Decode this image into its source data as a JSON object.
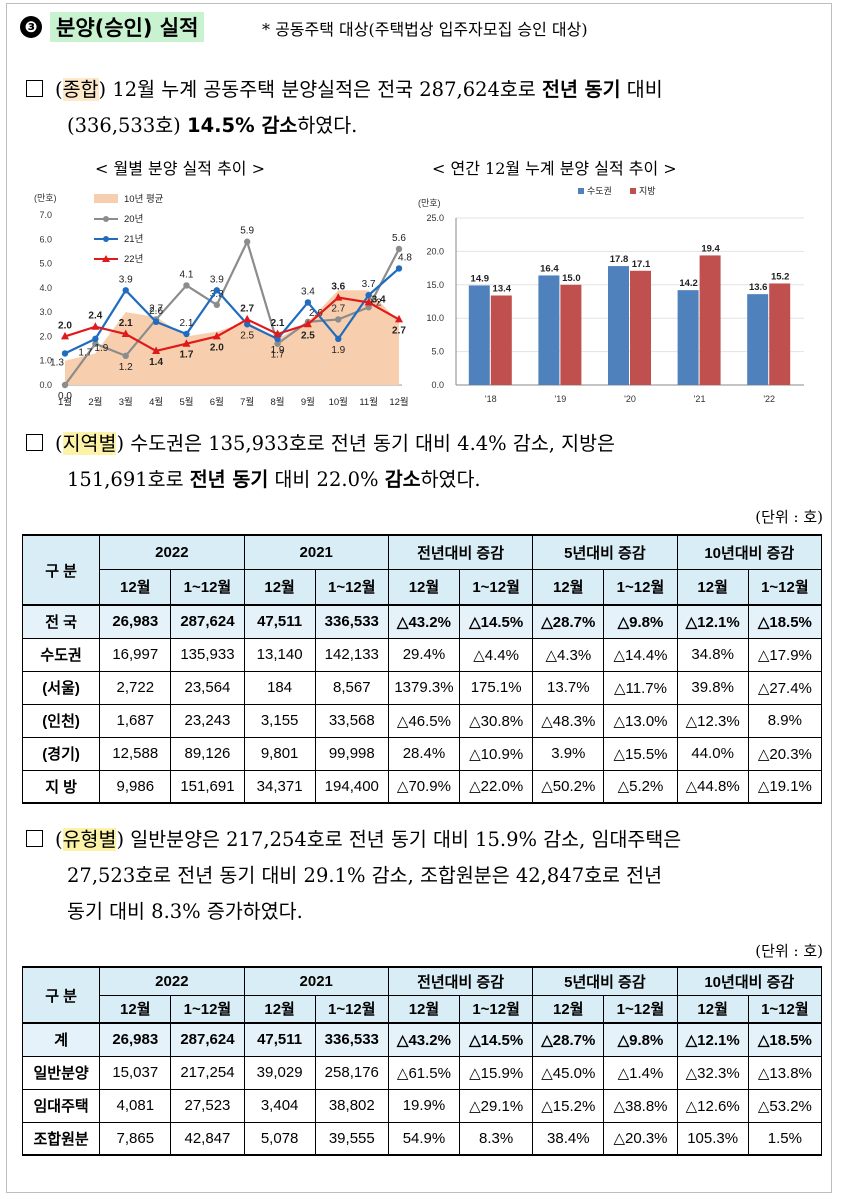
{
  "section": {
    "number": "❸",
    "title": "분양(승인) 실적",
    "note": "* 공동주택 대상(주택법상 입주자모집 승인 대상)"
  },
  "para1": {
    "tag": "종합",
    "line1a": "12월 누계 공동주택 분양실적은 전국 287,624호로 ",
    "line1b": "전년 동기",
    "line1c": " 대비",
    "line2a": "(336,533호) ",
    "line2b": "14.5% 감소",
    "line2c": "하였다."
  },
  "chart1": {
    "caption": "< 월별 분양 실적 추이 >",
    "unit": "(만호)",
    "legend": [
      "10년 평균",
      "20년",
      "21년",
      "22년"
    ],
    "colors": {
      "avg": "#f8cfae",
      "y20": "#8c8c8c",
      "y21": "#1f6cc0",
      "y22": "#e01a1a"
    }
  },
  "chart2": {
    "caption": "< 연간 12월 누계 분양 실적 추이 >",
    "unit": "(만호)",
    "legend": [
      "수도권",
      "지방"
    ],
    "colors": {
      "capital": "#4f81bd",
      "local": "#c0504d"
    }
  },
  "chart_data": [
    {
      "type": "line",
      "title": "< 월별 분양 실적 추이 >",
      "ylabel": "(만호)",
      "ylim": [
        0,
        7
      ],
      "yticks": [
        "0.0",
        "1.0",
        "2.0",
        "3.0",
        "4.0",
        "5.0",
        "6.0",
        "7.0"
      ],
      "categories": [
        "1월",
        "2월",
        "3월",
        "4월",
        "5월",
        "6월",
        "7월",
        "8월",
        "9월",
        "10월",
        "11월",
        "12월"
      ],
      "series": [
        {
          "name": "10년 평균",
          "kind": "area",
          "values": [
            1.0,
            1.3,
            3.0,
            2.8,
            2.0,
            2.2,
            2.6,
            1.9,
            2.6,
            3.9,
            3.9,
            2.6
          ]
        },
        {
          "name": "20년",
          "values": [
            0.0,
            1.7,
            1.2,
            2.7,
            4.1,
            3.3,
            5.9,
            1.7,
            2.6,
            2.7,
            3.2,
            5.6
          ],
          "labels": [
            "0.0",
            "1.7",
            "1.2",
            "2.7",
            "4.1",
            "3.3",
            "5.9",
            "1.7",
            "2.6",
            "2.7",
            "3.2",
            "5.6"
          ]
        },
        {
          "name": "21년",
          "values": [
            1.3,
            1.9,
            3.9,
            2.6,
            2.1,
            3.9,
            2.5,
            1.9,
            3.4,
            1.9,
            3.7,
            4.8
          ],
          "labels": [
            "1.3",
            "1.9",
            "3.9",
            "2.6",
            "2.1",
            "3.9",
            "2.5",
            "1.9",
            "3.4",
            "1.9",
            "3.7",
            "4.8"
          ]
        },
        {
          "name": "22년",
          "values": [
            2.0,
            2.4,
            2.1,
            1.4,
            1.7,
            2.0,
            2.7,
            2.1,
            2.5,
            3.6,
            3.4,
            2.7
          ],
          "labels": [
            "2.0",
            "2.4",
            "2.1",
            "1.4",
            "1.7",
            "2.0",
            "2.7",
            "2.1",
            "2.5",
            "3.6",
            "3.4",
            "2.7"
          ]
        }
      ]
    },
    {
      "type": "bar",
      "title": "< 연간 12월 누계 분양 실적 추이 >",
      "ylabel": "(만호)",
      "ylim": [
        0,
        25
      ],
      "yticks": [
        "0.0",
        "5.0",
        "10.0",
        "15.0",
        "20.0",
        "25.0"
      ],
      "categories": [
        "'18",
        "'19",
        "'20",
        "'21",
        "'22"
      ],
      "series": [
        {
          "name": "수도권",
          "values": [
            14.9,
            16.4,
            17.8,
            14.2,
            13.6
          ]
        },
        {
          "name": "지방",
          "values": [
            13.4,
            15.0,
            17.1,
            19.4,
            15.2
          ]
        }
      ]
    }
  ],
  "para2": {
    "tag": "지역별",
    "line1": "수도권은 135,933호로 전년 동기 대비 4.4% 감소, 지방은",
    "line2a": "151,691호로 ",
    "line2b": "전년 동기",
    "line2c": " 대비 22.0% ",
    "line2d": "감소",
    "line2e": "하였다."
  },
  "unit_label": "(단위 : 호)",
  "table1": {
    "corner": "구  분",
    "groups": [
      "2022",
      "2021",
      "전년대비 증감",
      "5년대비 증감",
      "10년대비 증감"
    ],
    "subs": [
      "12월",
      "1~12월",
      "12월",
      "1~12월",
      "12월",
      "1~12월",
      "12월",
      "1~12월",
      "12월",
      "1~12월"
    ],
    "rows": [
      {
        "label": "전 국",
        "cells": [
          "26,983",
          "287,624",
          "47,511",
          "336,533",
          "△43.2%",
          "△14.5%",
          "△28.7%",
          "△9.8%",
          "△12.1%",
          "△18.5%"
        ]
      },
      {
        "label": "수도권",
        "cells": [
          "16,997",
          "135,933",
          "13,140",
          "142,133",
          "29.4%",
          "△4.4%",
          "△4.3%",
          "△14.4%",
          "34.8%",
          "△17.9%"
        ]
      },
      {
        "label": "(서울)",
        "cells": [
          "2,722",
          "23,564",
          "184",
          "8,567",
          "1379.3%",
          "175.1%",
          "13.7%",
          "△11.7%",
          "39.8%",
          "△27.4%"
        ]
      },
      {
        "label": "(인천)",
        "cells": [
          "1,687",
          "23,243",
          "3,155",
          "33,568",
          "△46.5%",
          "△30.8%",
          "△48.3%",
          "△13.0%",
          "△12.3%",
          "8.9%"
        ]
      },
      {
        "label": "(경기)",
        "cells": [
          "12,588",
          "89,126",
          "9,801",
          "99,998",
          "28.4%",
          "△10.9%",
          "3.9%",
          "△15.5%",
          "44.0%",
          "△20.3%"
        ]
      },
      {
        "label": "지  방",
        "cells": [
          "9,986",
          "151,691",
          "34,371",
          "194,400",
          "△70.9%",
          "△22.0%",
          "△50.2%",
          "△5.2%",
          "△44.8%",
          "△19.1%"
        ]
      }
    ]
  },
  "para3": {
    "tag": "유형별",
    "line1": "일반분양은 217,254호로 전년 동기 대비 15.9% 감소, 임대주택은",
    "line2": "27,523호로 전년 동기 대비 29.1% 감소, 조합원분은 42,847호로 전년",
    "line3": "동기 대비 8.3% 증가하였다."
  },
  "table2": {
    "corner": "구 분",
    "groups": [
      "2022",
      "2021",
      "전년대비 증감",
      "5년대비 증감",
      "10년대비 증감"
    ],
    "subs": [
      "12월",
      "1~12월",
      "12월",
      "1~12월",
      "12월",
      "1~12월",
      "12월",
      "1~12월",
      "12월",
      "1~12월"
    ],
    "rows": [
      {
        "label": "계",
        "cells": [
          "26,983",
          "287,624",
          "47,511",
          "336,533",
          "△43.2%",
          "△14.5%",
          "△28.7%",
          "△9.8%",
          "△12.1%",
          "△18.5%"
        ]
      },
      {
        "label": "일반분양",
        "cells": [
          "15,037",
          "217,254",
          "39,029",
          "258,176",
          "△61.5%",
          "△15.9%",
          "△45.0%",
          "△1.4%",
          "△32.3%",
          "△13.8%"
        ]
      },
      {
        "label": "임대주택",
        "cells": [
          "4,081",
          "27,523",
          "3,404",
          "38,802",
          "19.9%",
          "△29.1%",
          "△15.2%",
          "△38.8%",
          "△12.6%",
          "△53.2%"
        ]
      },
      {
        "label": "조합원분",
        "cells": [
          "7,865",
          "42,847",
          "5,078",
          "39,555",
          "54.9%",
          "8.3%",
          "38.4%",
          "△20.3%",
          "105.3%",
          "1.5%"
        ]
      }
    ]
  }
}
